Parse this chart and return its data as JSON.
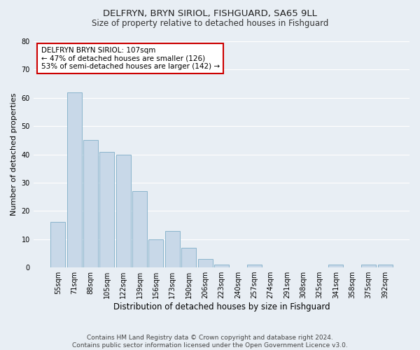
{
  "title": "DELFRYN, BRYN SIRIOL, FISHGUARD, SA65 9LL",
  "subtitle": "Size of property relative to detached houses in Fishguard",
  "xlabel": "Distribution of detached houses by size in Fishguard",
  "ylabel": "Number of detached properties",
  "bar_labels": [
    "55sqm",
    "71sqm",
    "88sqm",
    "105sqm",
    "122sqm",
    "139sqm",
    "156sqm",
    "173sqm",
    "190sqm",
    "206sqm",
    "223sqm",
    "240sqm",
    "257sqm",
    "274sqm",
    "291sqm",
    "308sqm",
    "325sqm",
    "341sqm",
    "358sqm",
    "375sqm",
    "392sqm"
  ],
  "bar_heights": [
    16,
    62,
    45,
    41,
    40,
    27,
    10,
    13,
    7,
    3,
    1,
    0,
    1,
    0,
    0,
    0,
    0,
    1,
    0,
    1,
    1
  ],
  "bar_color": "#c8d8e8",
  "bar_edge_color": "#8ab4cc",
  "ylim": [
    0,
    80
  ],
  "yticks": [
    0,
    10,
    20,
    30,
    40,
    50,
    60,
    70,
    80
  ],
  "annotation_title": "DELFRYN BRYN SIRIOL: 107sqm",
  "annotation_line1": "← 47% of detached houses are smaller (126)",
  "annotation_line2": "53% of semi-detached houses are larger (142) →",
  "annotation_box_color": "#ffffff",
  "annotation_box_edge": "#cc0000",
  "footer1": "Contains HM Land Registry data © Crown copyright and database right 2024.",
  "footer2": "Contains public sector information licensed under the Open Government Licence v3.0.",
  "background_color": "#e8eef4",
  "grid_color": "#ffffff",
  "title_fontsize": 9.5,
  "subtitle_fontsize": 8.5,
  "xlabel_fontsize": 8.5,
  "ylabel_fontsize": 8,
  "tick_fontsize": 7,
  "footer_fontsize": 6.5
}
